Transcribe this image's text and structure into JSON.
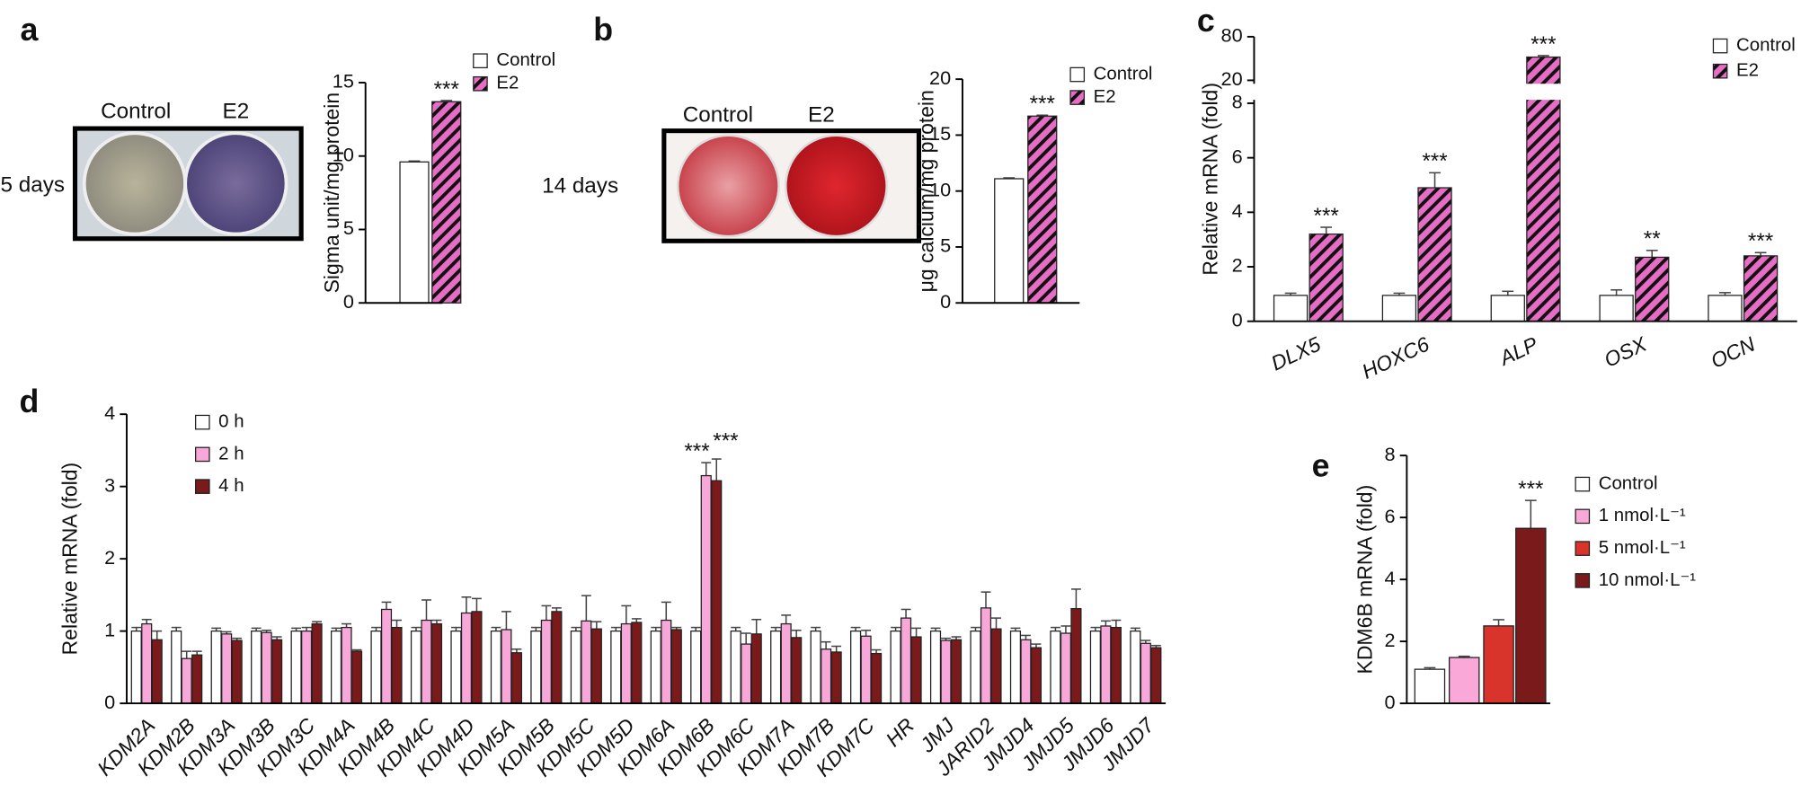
{
  "chart_data": [
    {
      "type": "bar",
      "panel_label": "a",
      "ylabel": "Sigma unit/mg protein",
      "image_labels": {
        "left": "Control",
        "right": "E2",
        "side": "5 days"
      },
      "ylim": [
        0,
        15
      ],
      "yticks": [
        0,
        5,
        10,
        15
      ],
      "series": [
        {
          "name": "Control",
          "color": "#ffffff",
          "values": [
            9.6
          ],
          "errors": [
            0.06
          ],
          "significance": [
            null
          ]
        },
        {
          "name": "E2",
          "color": "#e66cc4",
          "hatch": true,
          "values": [
            13.7
          ],
          "errors": [
            0.08
          ],
          "significance": [
            "***"
          ]
        }
      ]
    },
    {
      "type": "bar",
      "panel_label": "b",
      "ylabel": "μg calcium/mg protein",
      "image_labels": {
        "left": "Control",
        "right": "E2",
        "side": "14 days"
      },
      "ylim": [
        0,
        20
      ],
      "yticks": [
        0,
        5,
        10,
        15,
        20
      ],
      "series": [
        {
          "name": "Control",
          "color": "#ffffff",
          "values": [
            11.1
          ],
          "errors": [
            0.08
          ],
          "significance": [
            null
          ]
        },
        {
          "name": "E2",
          "color": "#e66cc4",
          "hatch": true,
          "values": [
            16.7
          ],
          "errors": [
            0.08
          ],
          "significance": [
            "***"
          ]
        }
      ]
    },
    {
      "type": "bar",
      "panel_label": "c",
      "ylabel": "Relative mRNA (fold)",
      "categories": [
        "DLX5",
        "HOXC6",
        "ALP",
        "OSX",
        "OCN"
      ],
      "ylim": [
        0,
        80
      ],
      "axis_break": [
        8,
        20
      ],
      "yticks": [
        0,
        2,
        4,
        6,
        8,
        20,
        80
      ],
      "series": [
        {
          "name": "Control",
          "color": "#ffffff",
          "values": [
            0.95,
            0.95,
            0.95,
            0.95,
            0.95
          ],
          "errors": [
            0.08,
            0.08,
            0.15,
            0.2,
            0.1
          ],
          "significance": [
            null,
            null,
            null,
            null,
            null
          ]
        },
        {
          "name": "E2",
          "color": "#e66cc4",
          "hatch": true,
          "values": [
            3.2,
            4.9,
            52,
            2.35,
            2.4
          ],
          "errors": [
            0.25,
            0.55,
            2,
            0.25,
            0.12
          ],
          "significance": [
            "***",
            "***",
            "***",
            "**",
            "***"
          ]
        }
      ]
    },
    {
      "type": "bar",
      "panel_label": "d",
      "ylabel": "Relative mRNA (fold)",
      "categories": [
        "KDM2A",
        "KDM2B",
        "KDM3A",
        "KDM3B",
        "KDM3C",
        "KDM4A",
        "KDM4B",
        "KDM4C",
        "KDM4D",
        "KDM5A",
        "KDM5B",
        "KDM5C",
        "KDM5D",
        "KDM6A",
        "KDM6B",
        "KDM6C",
        "KDM7A",
        "KDM7B",
        "KDM7C",
        "HR",
        "JMJ",
        "JARID2",
        "JMJD4",
        "JMJD5",
        "JMJD6",
        "JMJD7"
      ],
      "ylim": [
        0,
        4
      ],
      "yticks": [
        0,
        1,
        2,
        3,
        4
      ],
      "series": [
        {
          "name": "0 h",
          "color": "#ffffff",
          "values": [
            1,
            1,
            1,
            1,
            1,
            1,
            1,
            1,
            1,
            1,
            1,
            1,
            1,
            1,
            1,
            1,
            1,
            1,
            1,
            1,
            1,
            1,
            1,
            1,
            1,
            1
          ],
          "errors": [
            0.05,
            0.05,
            0.04,
            0.04,
            0.04,
            0.04,
            0.05,
            0.05,
            0.05,
            0.05,
            0.05,
            0.05,
            0.05,
            0.05,
            0.05,
            0.05,
            0.05,
            0.05,
            0.05,
            0.05,
            0.04,
            0.05,
            0.04,
            0.05,
            0.05,
            0.04
          ],
          "significance": [
            null,
            null,
            null,
            null,
            null,
            null,
            null,
            null,
            null,
            null,
            null,
            null,
            null,
            null,
            null,
            null,
            null,
            null,
            null,
            null,
            null,
            null,
            null,
            null,
            null,
            null
          ]
        },
        {
          "name": "2 h",
          "color": "#f7a8d8",
          "values": [
            1.1,
            0.62,
            0.96,
            0.98,
            1.0,
            1.05,
            1.3,
            1.15,
            1.25,
            1.02,
            1.15,
            1.14,
            1.1,
            1.15,
            3.15,
            0.82,
            1.1,
            0.75,
            0.93,
            1.18,
            0.87,
            1.32,
            0.88,
            0.97,
            1.07,
            0.83
          ],
          "errors": [
            0.06,
            0.1,
            0.03,
            0.03,
            0.05,
            0.05,
            0.1,
            0.28,
            0.22,
            0.25,
            0.2,
            0.35,
            0.25,
            0.25,
            0.18,
            0.15,
            0.12,
            0.1,
            0.08,
            0.12,
            0.03,
            0.22,
            0.06,
            0.1,
            0.07,
            0.04
          ],
          "significance": [
            null,
            null,
            null,
            null,
            null,
            null,
            null,
            null,
            null,
            null,
            null,
            null,
            null,
            null,
            "***",
            null,
            null,
            null,
            null,
            null,
            null,
            null,
            null,
            null,
            null,
            null
          ]
        },
        {
          "name": "4 h",
          "color": "#7a1a1a",
          "values": [
            0.88,
            0.67,
            0.87,
            0.88,
            1.1,
            0.72,
            1.05,
            1.1,
            1.27,
            0.7,
            1.27,
            1.03,
            1.12,
            1.02,
            3.08,
            0.96,
            0.91,
            0.71,
            0.69,
            0.92,
            0.88,
            1.03,
            0.77,
            1.31,
            1.05,
            0.77
          ],
          "errors": [
            0.12,
            0.05,
            0.03,
            0.04,
            0.03,
            0.02,
            0.1,
            0.05,
            0.18,
            0.05,
            0.05,
            0.1,
            0.05,
            0.03,
            0.3,
            0.2,
            0.1,
            0.08,
            0.05,
            0.12,
            0.04,
            0.15,
            0.05,
            0.27,
            0.1,
            0.03
          ],
          "significance": [
            null,
            null,
            null,
            null,
            null,
            null,
            null,
            null,
            null,
            null,
            null,
            null,
            null,
            null,
            "***",
            null,
            null,
            null,
            null,
            null,
            null,
            null,
            null,
            null,
            null,
            null
          ]
        }
      ]
    },
    {
      "type": "bar",
      "panel_label": "e",
      "ylabel": "KDM6B mRNA (fold)",
      "ylim": [
        0,
        8
      ],
      "yticks": [
        0,
        2,
        4,
        6,
        8
      ],
      "series": [
        {
          "name": "Control",
          "color": "#ffffff",
          "values": [
            1.1
          ],
          "errors": [
            0.05
          ],
          "significance": [
            null
          ]
        },
        {
          "name": "1 nmol·L⁻¹",
          "color": "#f9a8d8",
          "values": [
            1.48
          ],
          "errors": [
            0.04
          ],
          "significance": [
            null
          ]
        },
        {
          "name": "5 nmol·L⁻¹",
          "color": "#d9342b",
          "values": [
            2.5
          ],
          "errors": [
            0.2
          ],
          "significance": [
            null
          ]
        },
        {
          "name": "10 nmol·L⁻¹",
          "color": "#7b1a1a",
          "values": [
            5.65
          ],
          "errors": [
            0.9
          ],
          "significance": [
            "***"
          ]
        }
      ]
    }
  ]
}
